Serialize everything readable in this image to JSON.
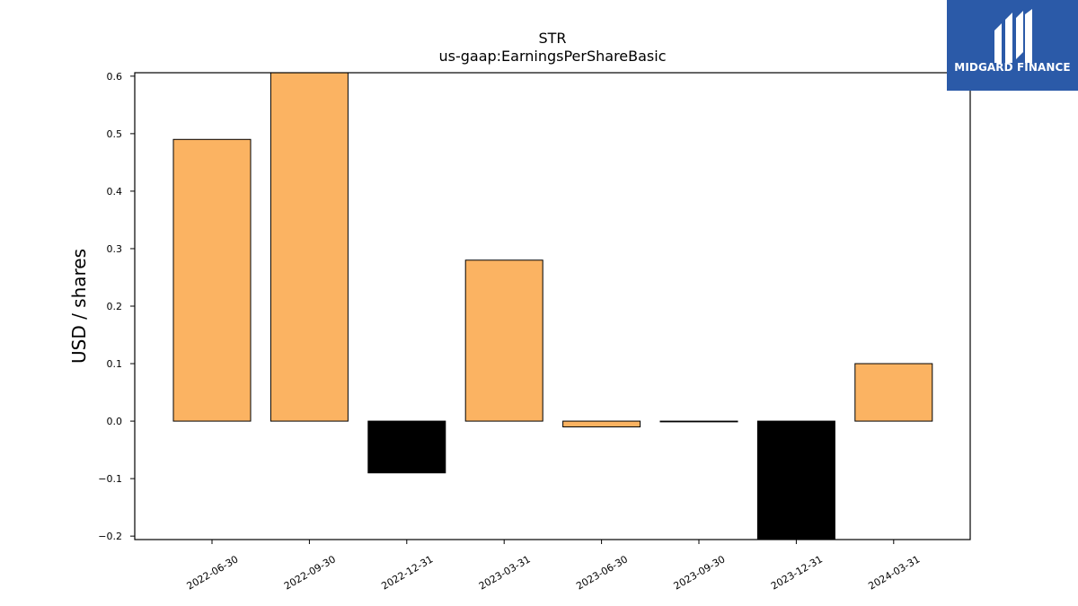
{
  "chart_data": {
    "type": "bar",
    "title": "STR",
    "subtitle": "us-gaap:EarningsPerShareBasic",
    "ylabel": "USD / shares",
    "xlabel": "",
    "categories": [
      "2022-06-30",
      "2022-09-30",
      "2022-12-31",
      "2023-03-31",
      "2023-06-30",
      "2023-09-30",
      "2023-12-31",
      "2024-03-31"
    ],
    "values": [
      0.49,
      0.61,
      -0.09,
      0.28,
      -0.01,
      0.0,
      -0.21,
      0.1
    ],
    "ylim": [
      -0.206,
      0.606
    ],
    "yticks": [
      -0.2,
      -0.1,
      0.0,
      0.1,
      0.2,
      0.3,
      0.4,
      0.5,
      0.6
    ],
    "ytick_labels": [
      "−0.2",
      "−0.1",
      "0.0",
      "0.1",
      "0.2",
      "0.3",
      "0.4",
      "0.5",
      "0.6"
    ],
    "colors": {
      "positive": "#fbb362",
      "negative": "#000000",
      "edge": "#000000"
    },
    "grid": false,
    "legend": "none"
  },
  "logo": {
    "text": "MIDGARD FINANCE",
    "background": "#2b5aa8"
  }
}
